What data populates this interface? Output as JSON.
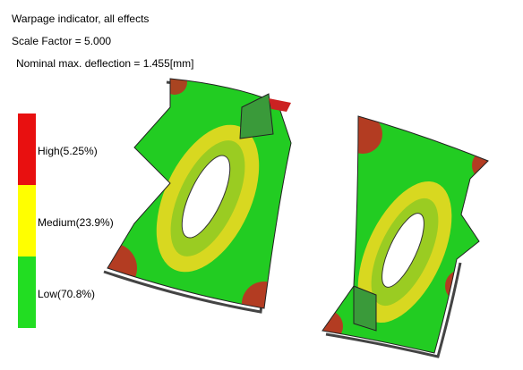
{
  "header": {
    "title": "Warpage indicator, all effects",
    "scale": "Scale Factor = 5.000",
    "deflection": "Nominal max. deflection = 1.455[mm]"
  },
  "legend": {
    "items": [
      {
        "label": "High(5.25%)",
        "color": "#e81010"
      },
      {
        "label": "Medium(23.9%)",
        "color": "#ffff00"
      },
      {
        "label": "Low(70.8%)",
        "color": "#22dd22"
      }
    ]
  }
}
